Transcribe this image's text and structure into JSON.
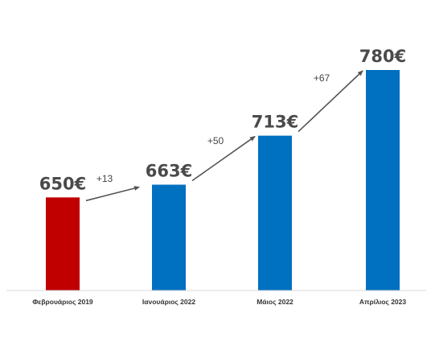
{
  "chart_data": {
    "type": "bar",
    "categories": [
      "Φεβρουάριος 2019",
      "Ιανουάριος 2022",
      "Μάιος 2022",
      "Απρίλιος 2023"
    ],
    "values": [
      650,
      663,
      713,
      780
    ],
    "value_labels": [
      "650€",
      "663€",
      "713€",
      "780€"
    ],
    "ylim": [
      555,
      800
    ],
    "grid": false,
    "legend": "none",
    "colors": [
      "#c00000",
      "#0070c0",
      "#0070c0",
      "#0070c0"
    ],
    "annotations": [
      {
        "text": "+13",
        "from": 0,
        "to": 1
      },
      {
        "text": "+50",
        "from": 1,
        "to": 2
      },
      {
        "text": "+67",
        "from": 2,
        "to": 3
      }
    ]
  },
  "colors": {
    "baseline": "#d9d9d9",
    "arrow": "#555555"
  }
}
